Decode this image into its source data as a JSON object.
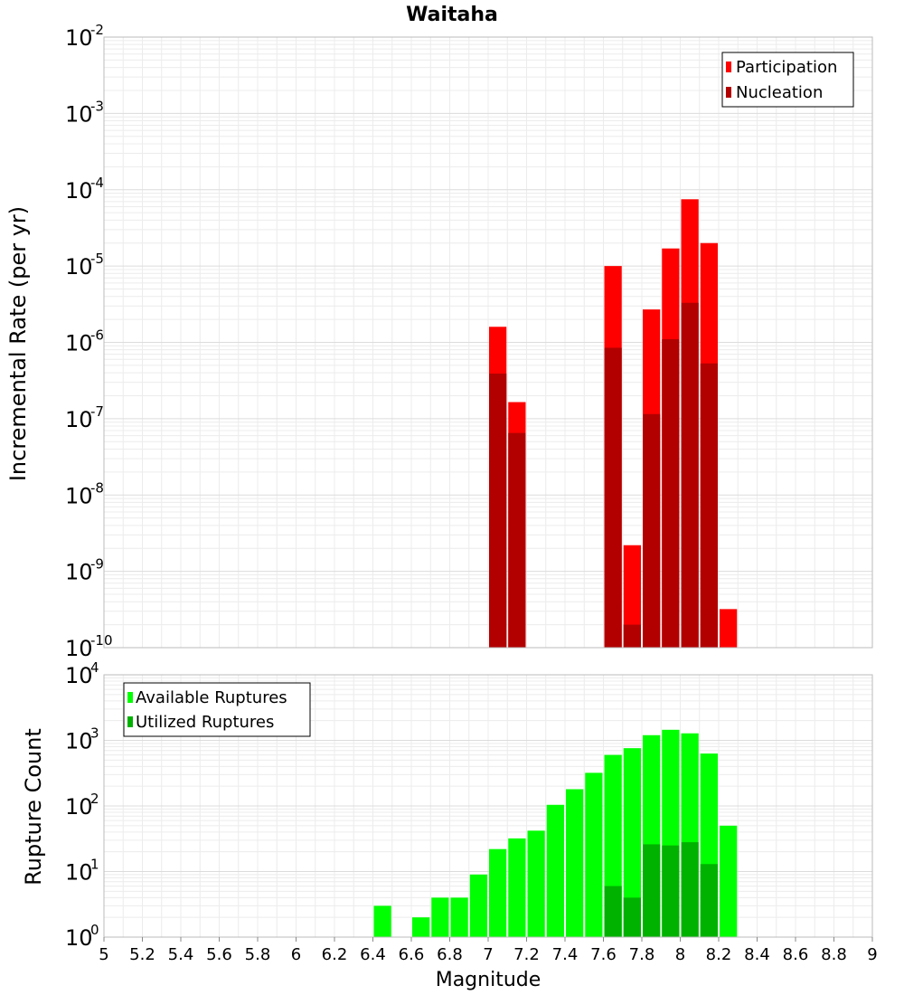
{
  "chart_data": [
    {
      "type": "bar",
      "title": "Waitaha",
      "xlabel": "",
      "ylabel": "Incremental Rate (per yr)",
      "yscale": "log",
      "ylim_exponents": [
        -10,
        -2
      ],
      "xlim": [
        5,
        9
      ],
      "bin_width": 0.1,
      "legend_position": "top-right",
      "series": [
        {
          "name": "Participation",
          "color": "#ff0000",
          "x": [
            7.05,
            7.15,
            7.65,
            7.75,
            7.85,
            7.95,
            8.05,
            8.15,
            8.25
          ],
          "values": [
            1.6e-06,
            1.65e-07,
            1e-05,
            2.2e-09,
            2.7e-06,
            1.7e-05,
            7.5e-05,
            2e-05,
            3.2e-10
          ]
        },
        {
          "name": "Nucleation",
          "color": "#b20000",
          "x": [
            7.05,
            7.15,
            7.65,
            7.75,
            7.85,
            7.95,
            8.05,
            8.15
          ],
          "values": [
            3.9e-07,
            6.5e-08,
            8.5e-07,
            2e-10,
            1.15e-07,
            1.1e-06,
            3.3e-06,
            5.3e-07
          ]
        }
      ]
    },
    {
      "type": "bar",
      "title": "",
      "xlabel": "Magnitude",
      "ylabel": "Rupture Count",
      "yscale": "log",
      "ylim_exponents": [
        0,
        4
      ],
      "xlim": [
        5,
        9
      ],
      "bin_width": 0.1,
      "x_ticks": [
        "5",
        "5.2",
        "5.4",
        "5.6",
        "5.8",
        "6",
        "6.2",
        "6.4",
        "6.6",
        "6.8",
        "7",
        "7.2",
        "7.4",
        "7.6",
        "7.8",
        "8",
        "8.2",
        "8.4",
        "8.6",
        "8.8",
        "9"
      ],
      "legend_position": "top-left",
      "series": [
        {
          "name": "Available Ruptures",
          "color": "#00ff00",
          "x": [
            6.45,
            6.65,
            6.75,
            6.85,
            6.95,
            7.05,
            7.15,
            7.25,
            7.35,
            7.45,
            7.55,
            7.65,
            7.75,
            7.85,
            7.95,
            8.05,
            8.15,
            8.25
          ],
          "values": [
            3,
            2,
            4,
            4,
            9,
            22,
            32,
            42,
            104,
            180,
            320,
            600,
            760,
            1200,
            1450,
            1280,
            630,
            50
          ]
        },
        {
          "name": "Utilized Ruptures",
          "color": "#00b200",
          "x": [
            7.05,
            7.15,
            7.25,
            7.55,
            7.65,
            7.75,
            7.85,
            7.95,
            8.05,
            8.15,
            8.25
          ],
          "values": [
            1,
            1,
            1,
            1,
            6,
            4,
            26,
            25,
            28,
            13,
            1
          ]
        }
      ]
    }
  ]
}
